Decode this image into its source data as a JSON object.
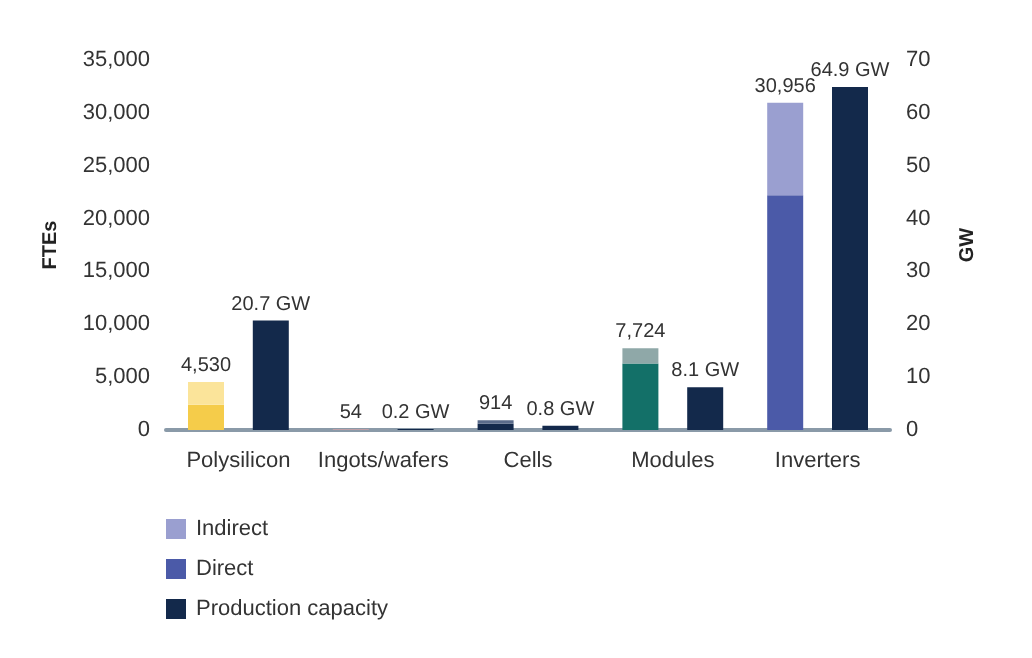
{
  "chart_data": {
    "type": "bar",
    "categories": [
      "Polysilicon",
      "Ingots/wafers",
      "Cells",
      "Modules",
      "Inverters"
    ],
    "ylabel": "FTEs",
    "y2label": "GW",
    "stacked": true,
    "ylim": [
      0,
      35000
    ],
    "yticks": [
      0,
      {
        "value": 5000,
        "label": "5,000"
      },
      {
        "value": 10000,
        "label": "10,000"
      },
      {
        "value": 15000,
        "label": "15,000"
      },
      {
        "value": 20000,
        "label": "20,000"
      },
      {
        "value": 25000,
        "label": "25,000"
      },
      {
        "value": 30000,
        "label": "30,000"
      },
      {
        "value": 35000,
        "label": "35,000"
      }
    ],
    "y2lim": [
      0,
      70
    ],
    "y2ticks": [
      0,
      10,
      20,
      30,
      40,
      50,
      60,
      70
    ],
    "series": [
      {
        "name": "Direct",
        "color": "#4b5aa8",
        "colors": [
          "#f5cc4a",
          "#f2a3a3",
          "#13294b",
          "#137068",
          "#4b5aa8"
        ],
        "values": [
          2400,
          54,
          600,
          6300,
          22200
        ]
      },
      {
        "name": "Indirect",
        "color": "#9a9fd0",
        "colors": [
          "#fbe49a",
          "#f8d0d0",
          "#5a6b8a",
          "#8fa8a8",
          "#9a9fd0"
        ],
        "values": [
          2130,
          null,
          314,
          1424,
          8756
        ]
      },
      {
        "name": "Production capacity",
        "type": "bar",
        "axis": "y2",
        "color": "#13294b",
        "values": [
          20.7,
          0.2,
          0.8,
          8.1,
          64.9
        ],
        "value_labels": [
          "20.7 GW",
          "0.2 GW",
          "0.8 GW",
          "8.1 GW",
          "64.9 GW"
        ]
      }
    ],
    "totals": [
      "4,530",
      "54",
      "914",
      "7,724",
      "30,956"
    ],
    "grid": false,
    "legend": "bottom left"
  }
}
